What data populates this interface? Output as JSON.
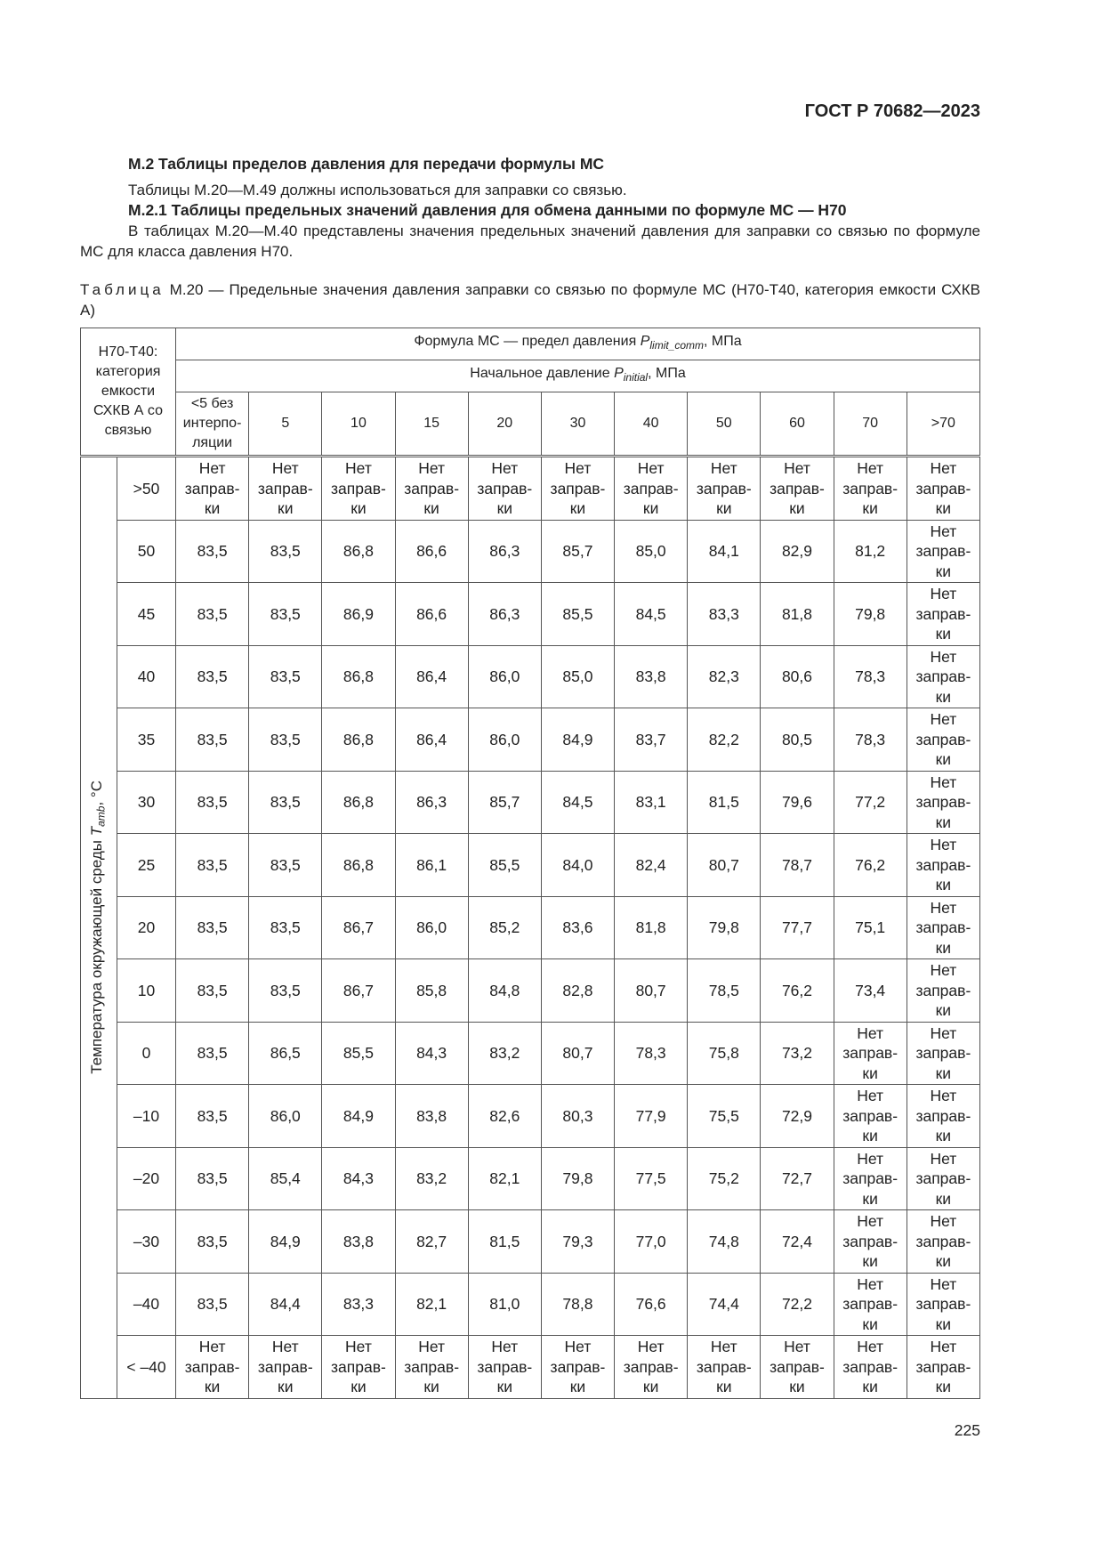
{
  "document": {
    "code": "ГОСТ Р 70682—2023",
    "section_heading": "М.2  Таблицы пределов давления для передачи формулы МС",
    "para1": "Таблицы М.20—М.49 должны использоваться для заправки со связью.",
    "subsection_heading": "М.2.1  Таблицы предельных значений давления для обмена данными по формуле МС — Н70",
    "para2": "В таблицах М.20—М.40 представлены значения предельных значений давления для заправки со связью по формуле МС для класса давления Н70.",
    "caption_label": "Таблица",
    "caption_text": " М.20 — Предельные значения давления заправки со связью по формуле МС (Н70-Т40, категория емкости СХКВ А)",
    "page_number": "225"
  },
  "table": {
    "corner_label": "Н70-Т40: категория емкости СХКВ А со связью",
    "header_main": {
      "prefix": "Формула МС — предел давления ",
      "symbol": "P",
      "subscript": "limit_comm",
      "suffix": ", МПа"
    },
    "header_sub": {
      "prefix": "Начальное давление ",
      "symbol": "P",
      "subscript": "initial",
      "suffix": ", МПа"
    },
    "columns": [
      "<5 без интерпо-ляции",
      "5",
      "10",
      "15",
      "20",
      "30",
      "40",
      "50",
      "60",
      "70",
      ">70"
    ],
    "row_axis": {
      "prefix": "Температура окружающей среды ",
      "symbol": "T",
      "subscript": "amb",
      "suffix": ", °С"
    },
    "rows": [
      {
        "temp": ">50",
        "values": [
          "Нет заправ-ки",
          "Нет заправ-ки",
          "Нет заправ-ки",
          "Нет заправ-ки",
          "Нет заправ-ки",
          "Нет заправ-ки",
          "Нет заправ-ки",
          "Нет заправ-ки",
          "Нет заправ-ки",
          "Нет заправ-ки",
          "Нет заправ-ки"
        ]
      },
      {
        "temp": "50",
        "values": [
          "83,5",
          "83,5",
          "86,8",
          "86,6",
          "86,3",
          "85,7",
          "85,0",
          "84,1",
          "82,9",
          "81,2",
          "Нет заправ-ки"
        ]
      },
      {
        "temp": "45",
        "values": [
          "83,5",
          "83,5",
          "86,9",
          "86,6",
          "86,3",
          "85,5",
          "84,5",
          "83,3",
          "81,8",
          "79,8",
          "Нет заправ-ки"
        ]
      },
      {
        "temp": "40",
        "values": [
          "83,5",
          "83,5",
          "86,8",
          "86,4",
          "86,0",
          "85,0",
          "83,8",
          "82,3",
          "80,6",
          "78,3",
          "Нет заправ-ки"
        ]
      },
      {
        "temp": "35",
        "values": [
          "83,5",
          "83,5",
          "86,8",
          "86,4",
          "86,0",
          "84,9",
          "83,7",
          "82,2",
          "80,5",
          "78,3",
          "Нет заправ-ки"
        ]
      },
      {
        "temp": "30",
        "values": [
          "83,5",
          "83,5",
          "86,8",
          "86,3",
          "85,7",
          "84,5",
          "83,1",
          "81,5",
          "79,6",
          "77,2",
          "Нет заправ-ки"
        ]
      },
      {
        "temp": "25",
        "values": [
          "83,5",
          "83,5",
          "86,8",
          "86,1",
          "85,5",
          "84,0",
          "82,4",
          "80,7",
          "78,7",
          "76,2",
          "Нет заправ-ки"
        ]
      },
      {
        "temp": "20",
        "values": [
          "83,5",
          "83,5",
          "86,7",
          "86,0",
          "85,2",
          "83,6",
          "81,8",
          "79,8",
          "77,7",
          "75,1",
          "Нет заправ-ки"
        ]
      },
      {
        "temp": "10",
        "values": [
          "83,5",
          "83,5",
          "86,7",
          "85,8",
          "84,8",
          "82,8",
          "80,7",
          "78,5",
          "76,2",
          "73,4",
          "Нет заправ-ки"
        ]
      },
      {
        "temp": "0",
        "values": [
          "83,5",
          "86,5",
          "85,5",
          "84,3",
          "83,2",
          "80,7",
          "78,3",
          "75,8",
          "73,2",
          "Нет заправ-ки",
          "Нет заправ-ки"
        ]
      },
      {
        "temp": "–10",
        "values": [
          "83,5",
          "86,0",
          "84,9",
          "83,8",
          "82,6",
          "80,3",
          "77,9",
          "75,5",
          "72,9",
          "Нет заправ-ки",
          "Нет заправ-ки"
        ]
      },
      {
        "temp": "–20",
        "values": [
          "83,5",
          "85,4",
          "84,3",
          "83,2",
          "82,1",
          "79,8",
          "77,5",
          "75,2",
          "72,7",
          "Нет заправ-ки",
          "Нет заправ-ки"
        ]
      },
      {
        "temp": "–30",
        "values": [
          "83,5",
          "84,9",
          "83,8",
          "82,7",
          "81,5",
          "79,3",
          "77,0",
          "74,8",
          "72,4",
          "Нет заправ-ки",
          "Нет заправ-ки"
        ]
      },
      {
        "temp": "–40",
        "values": [
          "83,5",
          "84,4",
          "83,3",
          "82,1",
          "81,0",
          "78,8",
          "76,6",
          "74,4",
          "72,2",
          "Нет заправ-ки",
          "Нет заправ-ки"
        ]
      },
      {
        "temp": "< –40",
        "values": [
          "Нет заправ-ки",
          "Нет заправ-ки",
          "Нет заправ-ки",
          "Нет заправ-ки",
          "Нет заправ-ки",
          "Нет заправ-ки",
          "Нет заправ-ки",
          "Нет заправ-ки",
          "Нет заправ-ки",
          "Нет заправ-ки",
          "Нет заправ-ки"
        ]
      }
    ]
  }
}
